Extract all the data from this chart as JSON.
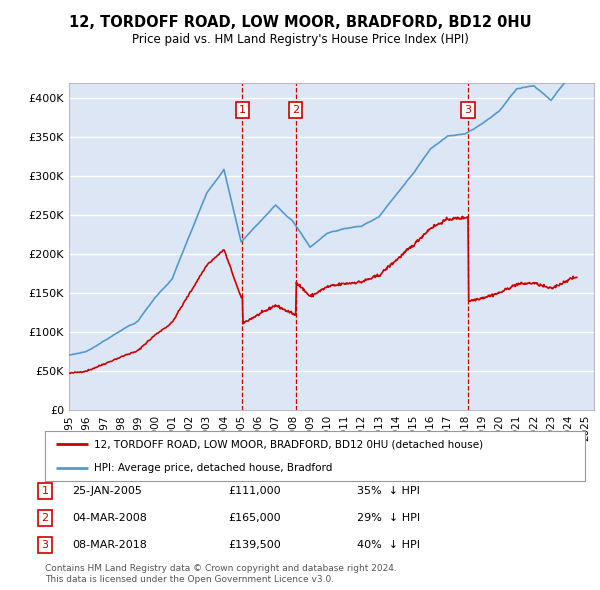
{
  "title": "12, TORDOFF ROAD, LOW MOOR, BRADFORD, BD12 0HU",
  "subtitle": "Price paid vs. HM Land Registry's House Price Index (HPI)",
  "ylabel_ticks": [
    "£0",
    "£50K",
    "£100K",
    "£150K",
    "£200K",
    "£250K",
    "£300K",
    "£350K",
    "£400K"
  ],
  "ytick_vals": [
    0,
    50000,
    100000,
    150000,
    200000,
    250000,
    300000,
    350000,
    400000
  ],
  "ylim": [
    0,
    420000
  ],
  "xlim_start": 1995.0,
  "xlim_end": 2025.5,
  "plot_bg_color": "#dce6f5",
  "grid_color": "#ffffff",
  "red_line_color": "#cc0000",
  "blue_line_color": "#5599cc",
  "vline_color": "#cc0000",
  "transactions": [
    {
      "num": 1,
      "date": "25-JAN-2005",
      "price": 111000,
      "pct": "35%",
      "dir": "↓",
      "year": 2005.07
    },
    {
      "num": 2,
      "date": "04-MAR-2008",
      "price": 165000,
      "pct": "29%",
      "dir": "↓",
      "year": 2008.17
    },
    {
      "num": 3,
      "date": "08-MAR-2018",
      "price": 139500,
      "pct": "40%",
      "dir": "↓",
      "year": 2018.18
    }
  ],
  "legend_line1": "12, TORDOFF ROAD, LOW MOOR, BRADFORD, BD12 0HU (detached house)",
  "legend_line2": "HPI: Average price, detached house, Bradford",
  "footnote1": "Contains HM Land Registry data © Crown copyright and database right 2024.",
  "footnote2": "This data is licensed under the Open Government Licence v3.0."
}
